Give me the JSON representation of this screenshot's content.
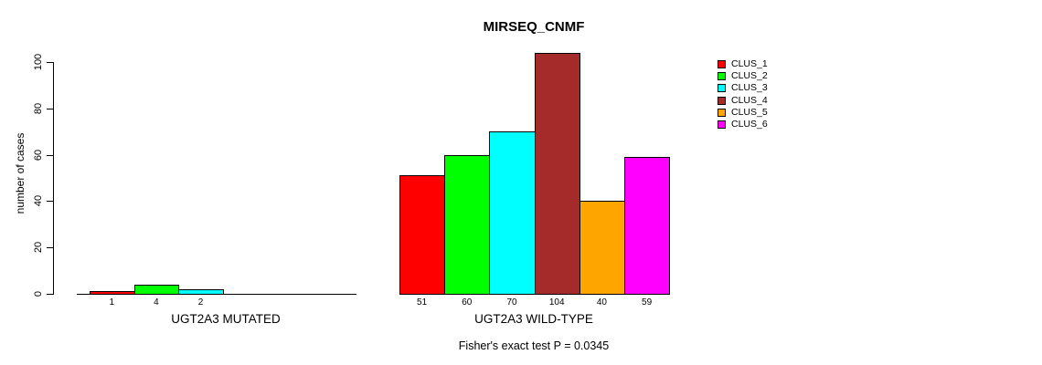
{
  "chart_data": {
    "type": "bar",
    "title": "MIRSEQ_CNMF",
    "ylabel": "number of cases",
    "xlabel": "",
    "yticks": [
      0,
      20,
      40,
      60,
      80,
      100
    ],
    "ylim": [
      0,
      104
    ],
    "grid": false,
    "annotation": "Fisher's exact test P = 0.0345",
    "legend": {
      "position": "right",
      "entries": [
        {
          "label": "CLUS_1",
          "color": "#FF0000"
        },
        {
          "label": "CLUS_2",
          "color": "#00FF00"
        },
        {
          "label": "CLUS_3",
          "color": "#00FFFF"
        },
        {
          "label": "CLUS_4",
          "color": "#A52A2A"
        },
        {
          "label": "CLUS_5",
          "color": "#FFA500"
        },
        {
          "label": "CLUS_6",
          "color": "#FF00FF"
        }
      ]
    },
    "groups": [
      {
        "key": "mutated",
        "label": "UGT2A3 MUTATED",
        "categories": [
          "CLUS_1",
          "CLUS_2",
          "CLUS_3"
        ],
        "values": [
          1,
          4,
          2
        ],
        "bar_labels": [
          "1",
          "4",
          "2"
        ],
        "colors": [
          "#FF0000",
          "#00FF00",
          "#00FFFF"
        ]
      },
      {
        "key": "wild-type",
        "label": "UGT2A3 WILD-TYPE",
        "categories": [
          "CLUS_1",
          "CLUS_2",
          "CLUS_3",
          "CLUS_4",
          "CLUS_5",
          "CLUS_6"
        ],
        "values": [
          51,
          60,
          70,
          104,
          40,
          59
        ],
        "bar_labels": [
          "51",
          "60",
          "70",
          "104",
          "40",
          "59"
        ],
        "colors": [
          "#FF0000",
          "#00FF00",
          "#00FFFF",
          "#A52A2A",
          "#FFA500",
          "#FF00FF"
        ]
      }
    ]
  }
}
